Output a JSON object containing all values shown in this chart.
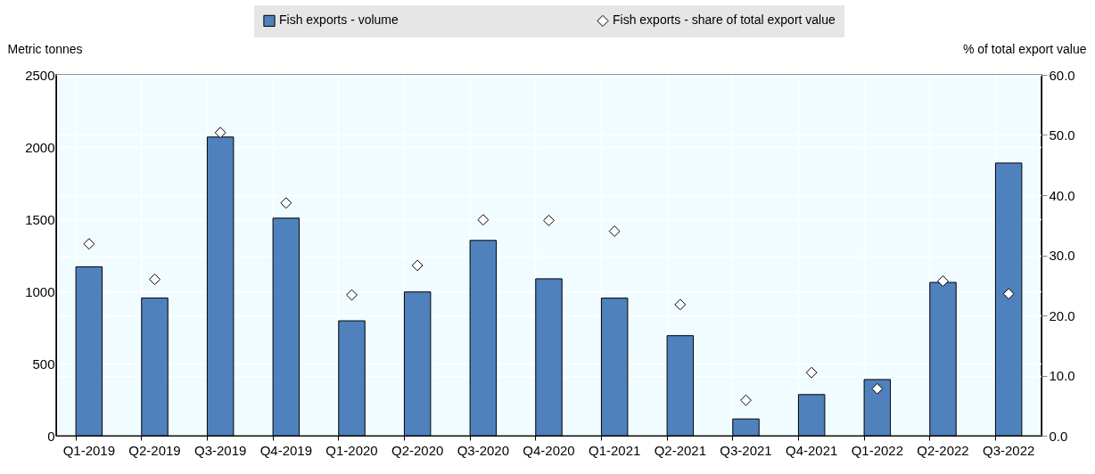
{
  "chart_data": {
    "type": "bar",
    "categories": [
      "Q1-2019",
      "Q2-2019",
      "Q3-2019",
      "Q4-2019",
      "Q1-2020",
      "Q2-2020",
      "Q3-2020",
      "Q4-2020",
      "Q1-2021",
      "Q2-2021",
      "Q3-2021",
      "Q4-2021",
      "Q1-2022",
      "Q2-2022",
      "Q3-2022"
    ],
    "ylabel": "Metric tonnes",
    "y2label": "% of total export value",
    "ylim": [
      0,
      2500
    ],
    "yticks": [
      0,
      500,
      1000,
      1500,
      2000,
      2500
    ],
    "y2lim": [
      0,
      60
    ],
    "y2ticks": [
      {
        "value": 0,
        "label": "0.0"
      },
      {
        "value": 10,
        "label": "10.0"
      },
      {
        "value": 20,
        "label": "20.0"
      },
      {
        "value": 30,
        "label": "30.0"
      },
      {
        "value": 40,
        "label": "40.0"
      },
      {
        "value": 50,
        "label": "50.0"
      },
      {
        "value": 60,
        "label": "60.0"
      }
    ],
    "grid": true,
    "legend": "top",
    "marker": "diamond",
    "series": [
      {
        "name": "Fish exports - volume",
        "color": "#4f81bd",
        "values": [
          1170,
          954,
          2069,
          1507,
          796,
          996,
          1353,
          1087,
          953,
          693,
          116,
          285,
          389,
          1062,
          1889
        ]
      },
      {
        "name": "Fish exports - share of total export value",
        "type": "scatter",
        "axis": "y2",
        "color": "#ffffff",
        "values": [
          31.9,
          26.0,
          50.4,
          38.7,
          23.4,
          28.3,
          35.9,
          35.8,
          34.0,
          21.8,
          5.9,
          10.5,
          7.8,
          25.7,
          23.6
        ]
      }
    ]
  }
}
